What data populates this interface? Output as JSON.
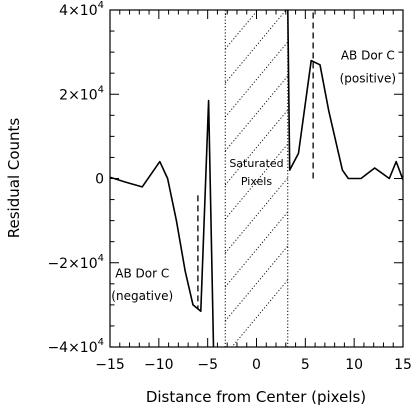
{
  "chart_data": {
    "type": "line",
    "xlabel": "Distance from Center (pixels)",
    "ylabel": "Residual Counts",
    "xlim": [
      -15,
      15
    ],
    "ylim": [
      -40000,
      40000
    ],
    "x_ticks": [
      {
        "value": -15,
        "label": "−15"
      },
      {
        "value": -10,
        "label": "−10"
      },
      {
        "value": -5,
        "label": "−5"
      },
      {
        "value": 0,
        "label": "0"
      },
      {
        "value": 5,
        "label": "5"
      },
      {
        "value": 10,
        "label": "10"
      },
      {
        "value": 15,
        "label": "15"
      }
    ],
    "y_ticks": [
      {
        "value": 40000,
        "mantissa": "4×10",
        "exp": "4"
      },
      {
        "value": 20000,
        "mantissa": "2×10",
        "exp": "4"
      },
      {
        "value": 0,
        "mantissa": "0",
        "exp": ""
      },
      {
        "value": -20000,
        "mantissa": "−2×10",
        "exp": "4"
      },
      {
        "value": -40000,
        "mantissa": "−4×10",
        "exp": "4"
      }
    ],
    "series": [
      {
        "segments": [
          [
            [
              -15.0,
              300
            ],
            [
              -13.5,
              -800
            ],
            [
              -11.7,
              -2000
            ],
            [
              -9.9,
              4000
            ],
            [
              -9.1,
              0
            ],
            [
              -8.2,
              -10000
            ],
            [
              -7.3,
              -22000
            ],
            [
              -6.5,
              -30000
            ],
            [
              -5.7,
              -31500
            ],
            [
              -4.9,
              18500
            ],
            [
              -4.4,
              -40000
            ]
          ],
          [
            [
              3.2,
              40000
            ],
            [
              3.4,
              2000
            ],
            [
              4.3,
              6000
            ],
            [
              5.6,
              28000
            ],
            [
              6.5,
              27000
            ],
            [
              7.4,
              16000
            ],
            [
              8.8,
              2000
            ],
            [
              9.4,
              0
            ],
            [
              10.7,
              0
            ],
            [
              12.1,
              2500
            ],
            [
              13.6,
              0
            ],
            [
              14.3,
              4000
            ],
            [
              15.0,
              -300
            ]
          ]
        ]
      }
    ],
    "saturated_region": {
      "x0": -3.2,
      "x1": 3.2,
      "label_line1": "Saturated",
      "label_line2": "Pixels"
    },
    "markers": [
      {
        "x": -6.0,
        "y0": -4000,
        "y1": -31000
      },
      {
        "x": 5.8,
        "y0": 0,
        "y1": 40000
      }
    ],
    "annotations": [
      {
        "line1": "AB Dor C",
        "line2": "(negative)",
        "x": -11.7,
        "y1": -23500,
        "y2": -28800
      },
      {
        "line1": "AB Dor C",
        "line2": "(positive)",
        "x": 11.4,
        "y1": 28300,
        "y2": 22800
      }
    ]
  }
}
